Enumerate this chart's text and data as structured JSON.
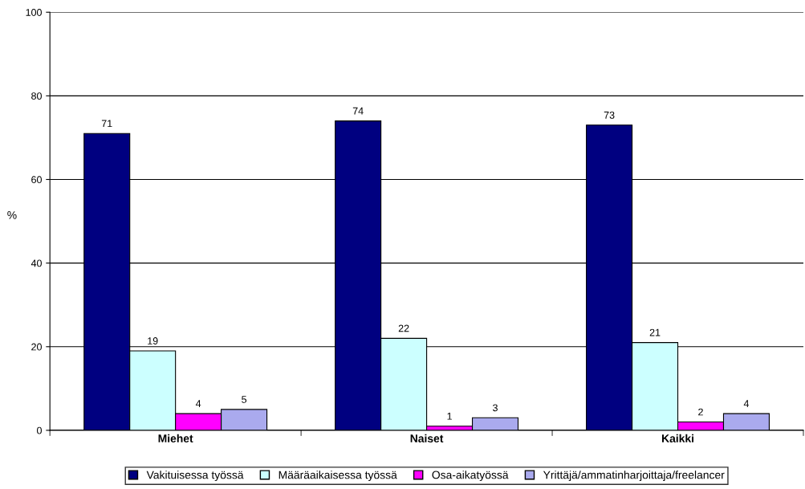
{
  "chart_data": {
    "type": "bar",
    "ylabel": "%",
    "categories": [
      "Miehet",
      "Naiset",
      "Kaikki"
    ],
    "series": [
      {
        "name": "Vakituisessa työssä",
        "color": "#000080",
        "values": [
          71,
          74,
          73
        ]
      },
      {
        "name": "Määräaikaisessa työssä",
        "color": "#ccffff",
        "values": [
          19,
          22,
          21
        ]
      },
      {
        "name": "Osa-aikatyössä",
        "color": "#ff00ff",
        "values": [
          4,
          1,
          2
        ]
      },
      {
        "name": "Yrittäjä/ammatinharjoittaja/freelancer",
        "color": "#aaaaee",
        "values": [
          5,
          3,
          4
        ]
      }
    ],
    "ylim": [
      0,
      100
    ],
    "yticks": [
      0,
      20,
      40,
      60,
      80,
      100
    ],
    "grid": "y",
    "legend": "bottom",
    "data_labels": true
  }
}
